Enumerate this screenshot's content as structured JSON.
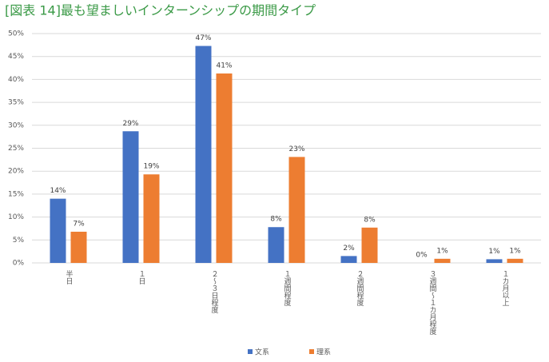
{
  "chart_data": {
    "type": "bar",
    "title": "[図表 14]最も望ましいインターンシップの期間タイプ",
    "categories": [
      "半日",
      "１日",
      "２〜３日程度",
      "１週間程度",
      "２週間程度",
      "３週間〜１カ月程度",
      "１カ月以上"
    ],
    "series": [
      {
        "name": "文系",
        "color": "#4472c4",
        "values": [
          14.0,
          28.7,
          47.3,
          7.8,
          1.5,
          0,
          0.8
        ],
        "value_labels": [
          "14%",
          "29%",
          "47%",
          "8%",
          "2%",
          "0%",
          "1%"
        ]
      },
      {
        "name": "理系",
        "color": "#ed7d31",
        "values": [
          6.8,
          19.3,
          41.3,
          23.1,
          7.7,
          0.9,
          0.9
        ],
        "value_labels": [
          "7%",
          "19%",
          "41%",
          "23%",
          "8%",
          "1%",
          "1%"
        ]
      }
    ],
    "ylim": [
      0,
      50
    ],
    "yticks": [
      {
        "value": 0,
        "label": "0%"
      },
      {
        "value": 5,
        "label": "5%"
      },
      {
        "value": 10,
        "label": "10%"
      },
      {
        "value": 15,
        "label": "15%"
      },
      {
        "value": 20,
        "label": "20%"
      },
      {
        "value": 25,
        "label": "25%"
      },
      {
        "value": 30,
        "label": "30%"
      },
      {
        "value": 35,
        "label": "35%"
      },
      {
        "value": 40,
        "label": "40%"
      },
      {
        "value": 45,
        "label": "45%"
      },
      {
        "value": 50,
        "label": "50%"
      }
    ],
    "grid": true,
    "legend": "bottom"
  }
}
